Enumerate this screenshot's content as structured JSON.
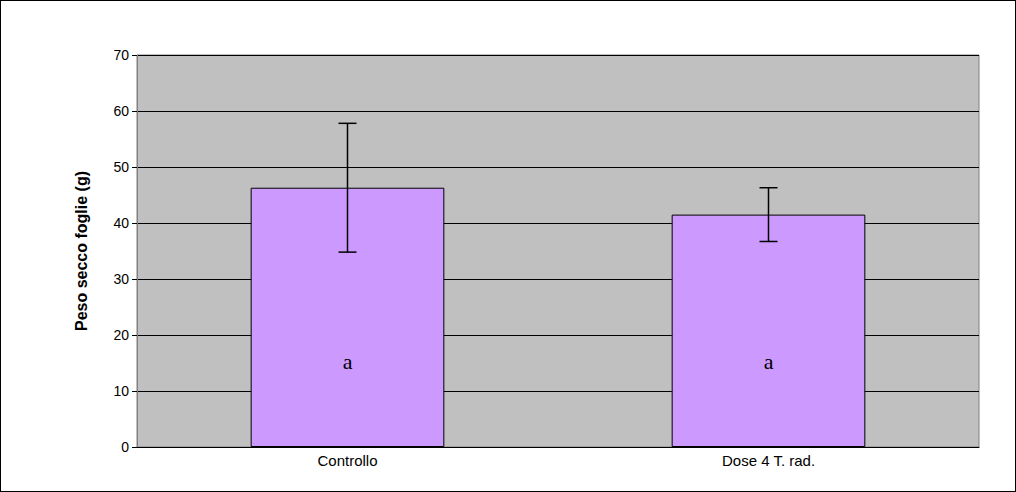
{
  "chart_data": {
    "type": "bar",
    "y_label": "Peso secco foglie (g)",
    "categories": [
      "Controllo",
      "Dose 4 T. rad."
    ],
    "values": [
      46.3,
      41.5
    ],
    "errors": [
      11.5,
      4.8
    ],
    "annotations": [
      "a",
      "a"
    ],
    "color": "#cc99ff",
    "ylim": [
      0,
      70
    ],
    "yticks": [
      0,
      10,
      20,
      30,
      40,
      50,
      60,
      70
    ],
    "grid": true
  }
}
